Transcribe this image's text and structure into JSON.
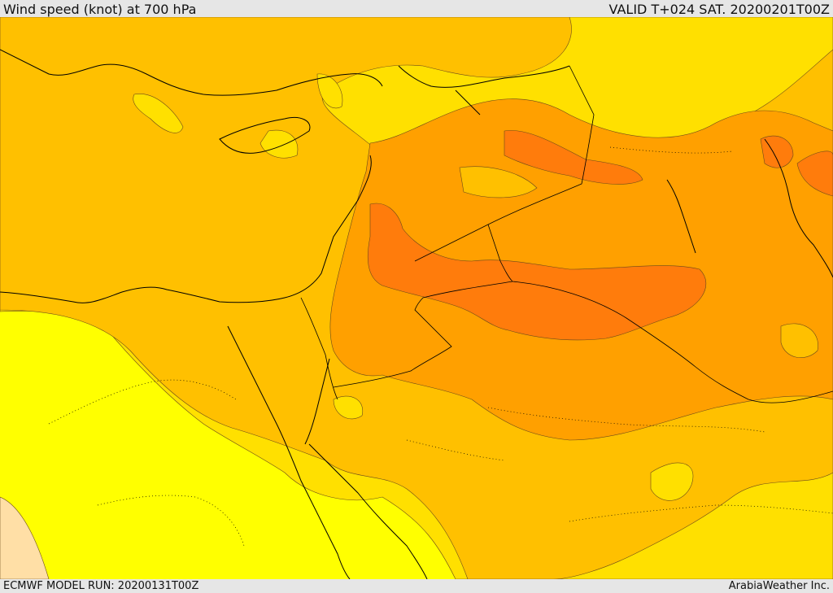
{
  "header": {
    "title": "Wind speed (knot) at 700 hPa",
    "valid_time": "VALID T+024 SAT. 20200201T00Z"
  },
  "footer": {
    "model_run": "ECMWF MODEL RUN: 20200131T00Z",
    "credit": "ArabiaWeather Inc."
  },
  "map": {
    "colors": {
      "level_lowest": "#ffff00",
      "level_low": "#ffe000",
      "level_mid": "#ffc000",
      "level_high": "#ffa000",
      "level_highest": "#ff7c0c",
      "calm_patch": "#ffdfa6",
      "coastline": "#000000",
      "contour": "#6b4a1a"
    }
  }
}
